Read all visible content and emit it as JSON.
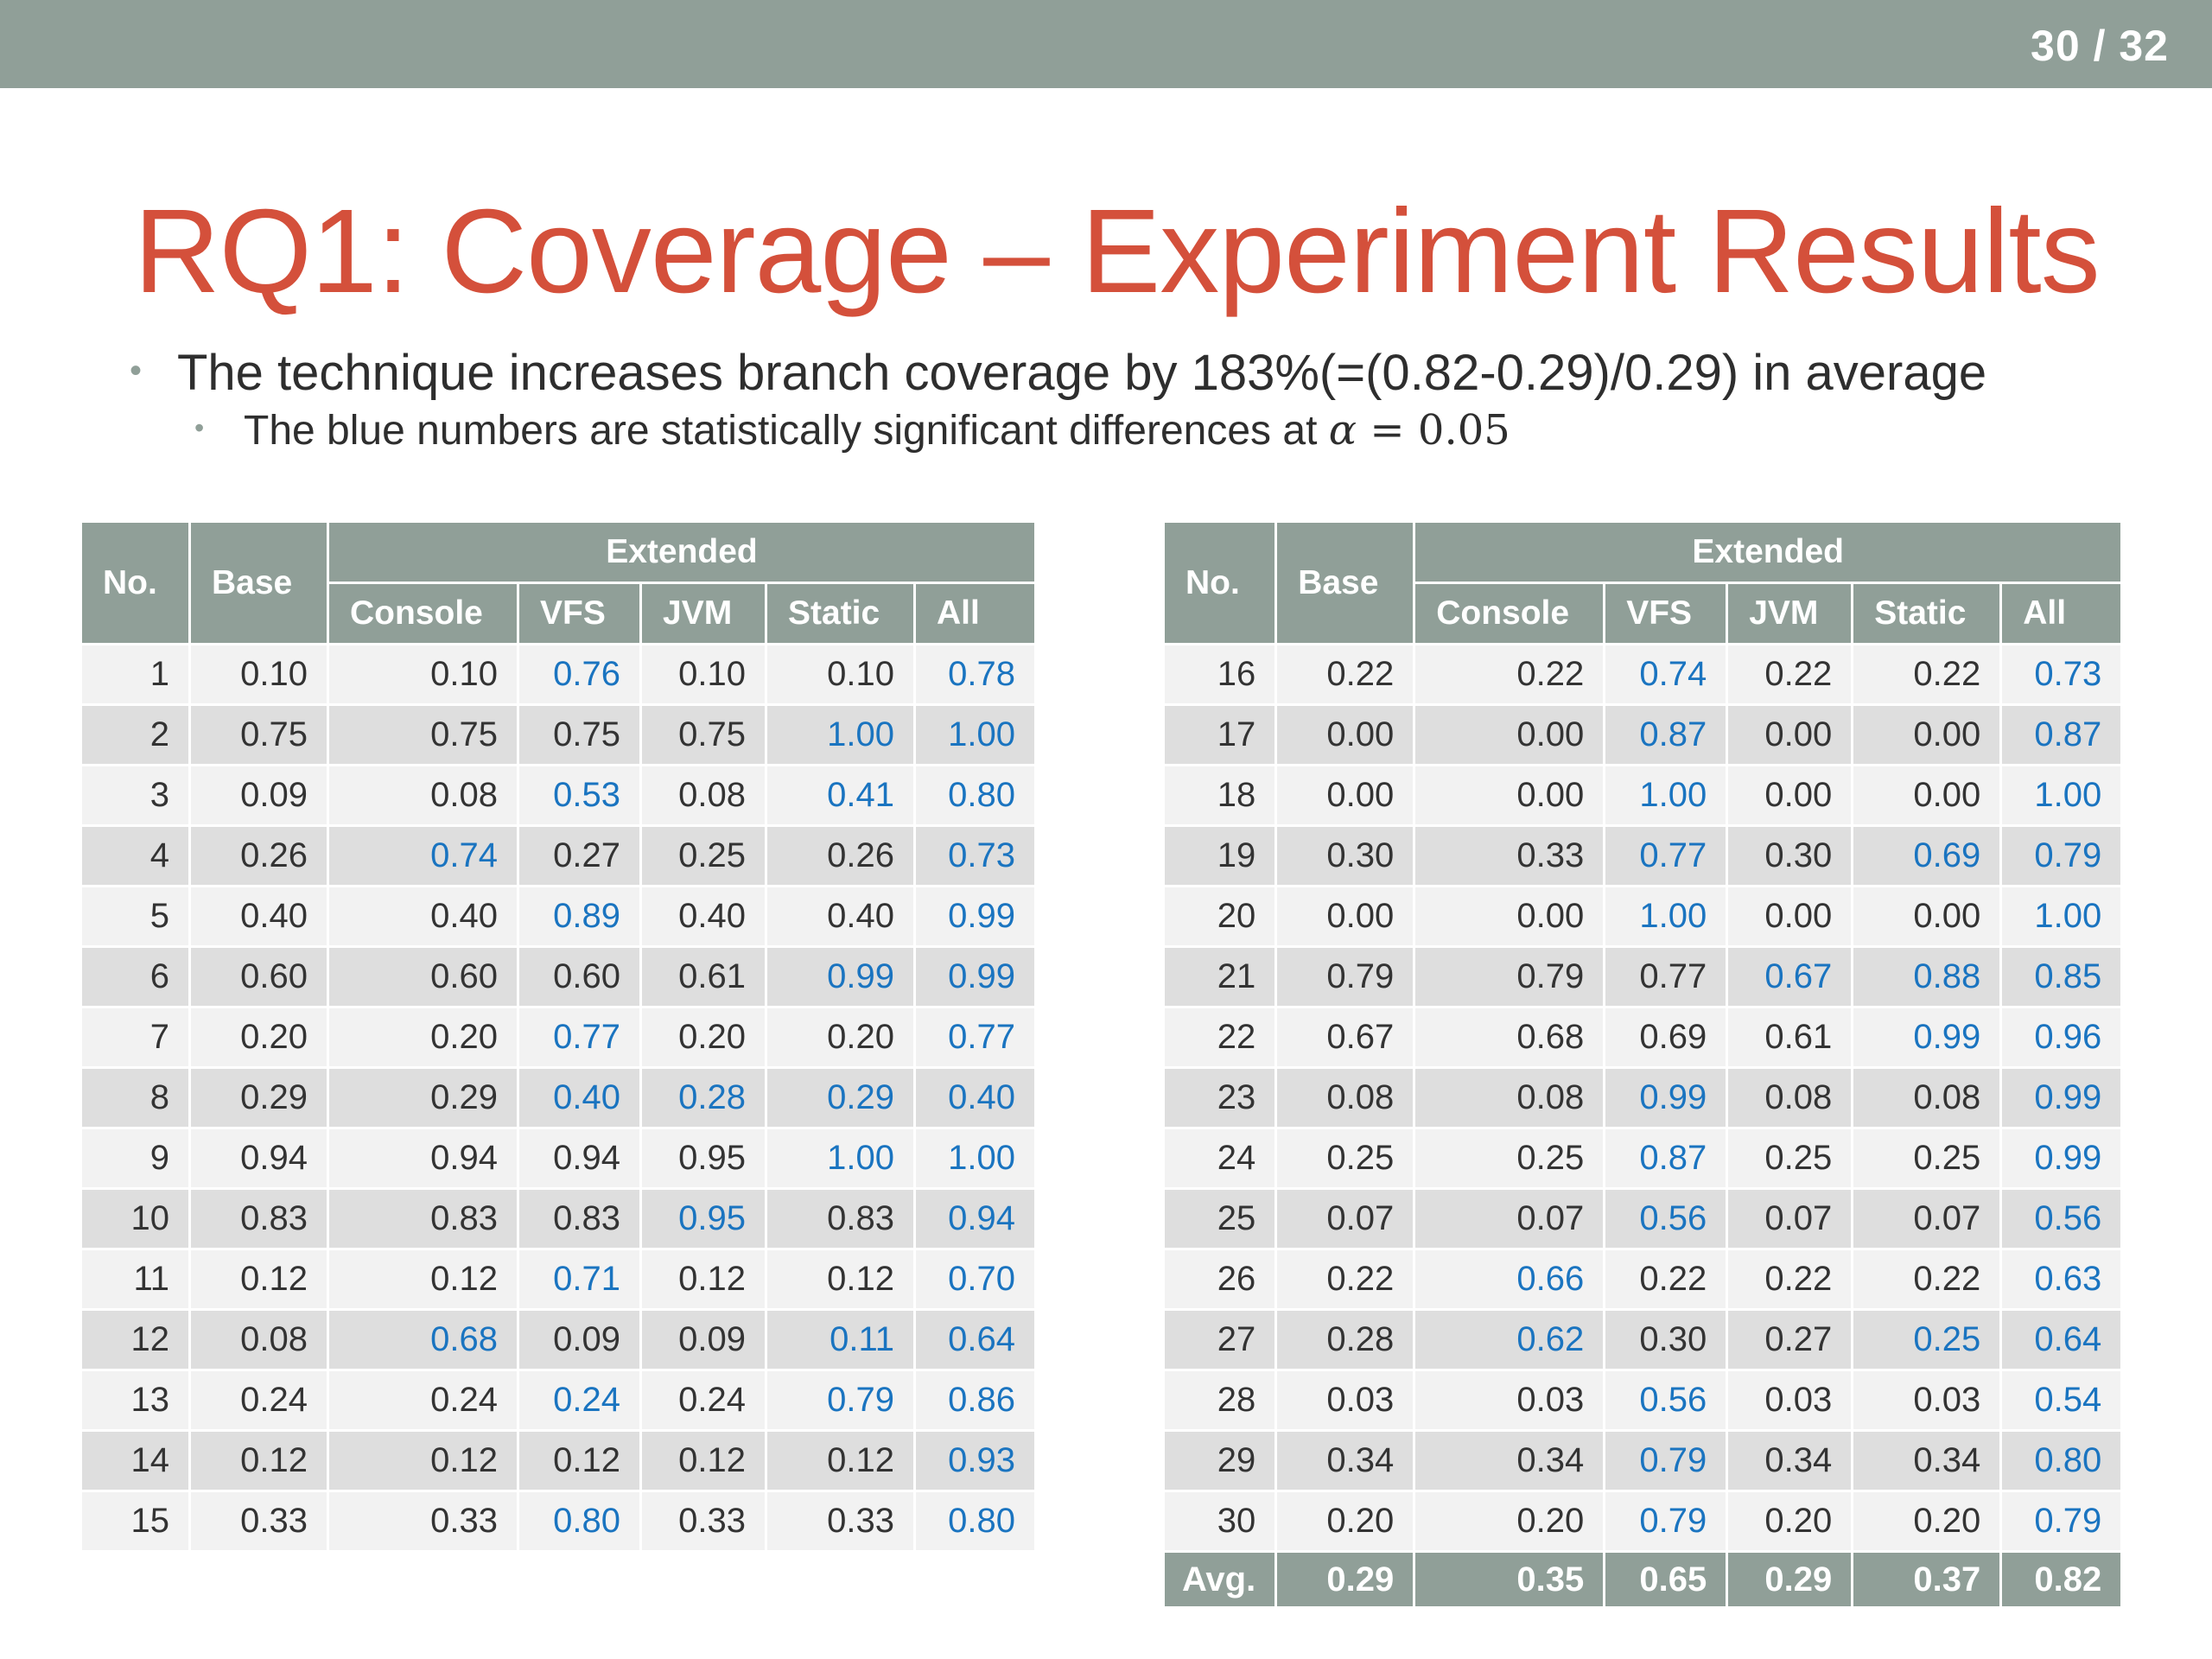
{
  "header": {
    "page_current": "30",
    "page_total": "32",
    "page_sep": "/"
  },
  "slide": {
    "title": "RQ1: Coverage – Experiment Results",
    "bullet_main": "The technique increases branch coverage by 183%(=(0.82-0.29)/0.29) in average",
    "bullet_sub_text": "The blue numbers are statistically significant differences at",
    "bullet_sub_alpha": "α",
    "bullet_sub_eq": " = ",
    "bullet_sub_value": "0.05"
  },
  "table_headers": {
    "no": "No.",
    "base": "Base",
    "extended": "Extended",
    "console": "Console",
    "vfs": "VFS",
    "jvm": "JVM",
    "static": "Static",
    "all": "All"
  },
  "colors": {
    "bar": "#909f98",
    "title": "#d4503b",
    "significant": "#1a74c0"
  },
  "table_left": {
    "rows": [
      {
        "no": "1",
        "base": "0.10",
        "console": "0.10",
        "vfs": "0.76",
        "jvm": "0.10",
        "static": "0.10",
        "all": "0.78",
        "sig": [
          "vfs",
          "all"
        ]
      },
      {
        "no": "2",
        "base": "0.75",
        "console": "0.75",
        "vfs": "0.75",
        "jvm": "0.75",
        "static": "1.00",
        "all": "1.00",
        "sig": [
          "static",
          "all"
        ]
      },
      {
        "no": "3",
        "base": "0.09",
        "console": "0.08",
        "vfs": "0.53",
        "jvm": "0.08",
        "static": "0.41",
        "all": "0.80",
        "sig": [
          "vfs",
          "static",
          "all"
        ]
      },
      {
        "no": "4",
        "base": "0.26",
        "console": "0.74",
        "vfs": "0.27",
        "jvm": "0.25",
        "static": "0.26",
        "all": "0.73",
        "sig": [
          "console",
          "all"
        ]
      },
      {
        "no": "5",
        "base": "0.40",
        "console": "0.40",
        "vfs": "0.89",
        "jvm": "0.40",
        "static": "0.40",
        "all": "0.99",
        "sig": [
          "vfs",
          "all"
        ]
      },
      {
        "no": "6",
        "base": "0.60",
        "console": "0.60",
        "vfs": "0.60",
        "jvm": "0.61",
        "static": "0.99",
        "all": "0.99",
        "sig": [
          "static",
          "all"
        ]
      },
      {
        "no": "7",
        "base": "0.20",
        "console": "0.20",
        "vfs": "0.77",
        "jvm": "0.20",
        "static": "0.20",
        "all": "0.77",
        "sig": [
          "vfs",
          "all"
        ]
      },
      {
        "no": "8",
        "base": "0.29",
        "console": "0.29",
        "vfs": "0.40",
        "jvm": "0.28",
        "static": "0.29",
        "all": "0.40",
        "sig": [
          "vfs",
          "jvm",
          "static",
          "all"
        ]
      },
      {
        "no": "9",
        "base": "0.94",
        "console": "0.94",
        "vfs": "0.94",
        "jvm": "0.95",
        "static": "1.00",
        "all": "1.00",
        "sig": [
          "static",
          "all"
        ]
      },
      {
        "no": "10",
        "base": "0.83",
        "console": "0.83",
        "vfs": "0.83",
        "jvm": "0.95",
        "static": "0.83",
        "all": "0.94",
        "sig": [
          "jvm",
          "all"
        ]
      },
      {
        "no": "11",
        "base": "0.12",
        "console": "0.12",
        "vfs": "0.71",
        "jvm": "0.12",
        "static": "0.12",
        "all": "0.70",
        "sig": [
          "vfs",
          "all"
        ]
      },
      {
        "no": "12",
        "base": "0.08",
        "console": "0.68",
        "vfs": "0.09",
        "jvm": "0.09",
        "static": "0.11",
        "all": "0.64",
        "sig": [
          "console",
          "static",
          "all"
        ]
      },
      {
        "no": "13",
        "base": "0.24",
        "console": "0.24",
        "vfs": "0.24",
        "jvm": "0.24",
        "static": "0.79",
        "all": "0.86",
        "sig": [
          "vfs",
          "static",
          "all"
        ]
      },
      {
        "no": "14",
        "base": "0.12",
        "console": "0.12",
        "vfs": "0.12",
        "jvm": "0.12",
        "static": "0.12",
        "all": "0.93",
        "sig": [
          "all"
        ]
      },
      {
        "no": "15",
        "base": "0.33",
        "console": "0.33",
        "vfs": "0.80",
        "jvm": "0.33",
        "static": "0.33",
        "all": "0.80",
        "sig": [
          "vfs",
          "all"
        ]
      }
    ]
  },
  "table_right": {
    "rows": [
      {
        "no": "16",
        "base": "0.22",
        "console": "0.22",
        "vfs": "0.74",
        "jvm": "0.22",
        "static": "0.22",
        "all": "0.73",
        "sig": [
          "vfs",
          "all"
        ]
      },
      {
        "no": "17",
        "base": "0.00",
        "console": "0.00",
        "vfs": "0.87",
        "jvm": "0.00",
        "static": "0.00",
        "all": "0.87",
        "sig": [
          "vfs",
          "all"
        ]
      },
      {
        "no": "18",
        "base": "0.00",
        "console": "0.00",
        "vfs": "1.00",
        "jvm": "0.00",
        "static": "0.00",
        "all": "1.00",
        "sig": [
          "vfs",
          "all"
        ]
      },
      {
        "no": "19",
        "base": "0.30",
        "console": "0.33",
        "vfs": "0.77",
        "jvm": "0.30",
        "static": "0.69",
        "all": "0.79",
        "sig": [
          "vfs",
          "static",
          "all"
        ]
      },
      {
        "no": "20",
        "base": "0.00",
        "console": "0.00",
        "vfs": "1.00",
        "jvm": "0.00",
        "static": "0.00",
        "all": "1.00",
        "sig": [
          "vfs",
          "all"
        ]
      },
      {
        "no": "21",
        "base": "0.79",
        "console": "0.79",
        "vfs": "0.77",
        "jvm": "0.67",
        "static": "0.88",
        "all": "0.85",
        "sig": [
          "jvm",
          "static",
          "all"
        ]
      },
      {
        "no": "22",
        "base": "0.67",
        "console": "0.68",
        "vfs": "0.69",
        "jvm": "0.61",
        "static": "0.99",
        "all": "0.96",
        "sig": [
          "static",
          "all"
        ]
      },
      {
        "no": "23",
        "base": "0.08",
        "console": "0.08",
        "vfs": "0.99",
        "jvm": "0.08",
        "static": "0.08",
        "all": "0.99",
        "sig": [
          "vfs",
          "all"
        ]
      },
      {
        "no": "24",
        "base": "0.25",
        "console": "0.25",
        "vfs": "0.87",
        "jvm": "0.25",
        "static": "0.25",
        "all": "0.99",
        "sig": [
          "vfs",
          "all"
        ]
      },
      {
        "no": "25",
        "base": "0.07",
        "console": "0.07",
        "vfs": "0.56",
        "jvm": "0.07",
        "static": "0.07",
        "all": "0.56",
        "sig": [
          "vfs",
          "all"
        ]
      },
      {
        "no": "26",
        "base": "0.22",
        "console": "0.66",
        "vfs": "0.22",
        "jvm": "0.22",
        "static": "0.22",
        "all": "0.63",
        "sig": [
          "console",
          "all"
        ]
      },
      {
        "no": "27",
        "base": "0.28",
        "console": "0.62",
        "vfs": "0.30",
        "jvm": "0.27",
        "static": "0.25",
        "all": "0.64",
        "sig": [
          "console",
          "static",
          "all"
        ]
      },
      {
        "no": "28",
        "base": "0.03",
        "console": "0.03",
        "vfs": "0.56",
        "jvm": "0.03",
        "static": "0.03",
        "all": "0.54",
        "sig": [
          "vfs",
          "all"
        ]
      },
      {
        "no": "29",
        "base": "0.34",
        "console": "0.34",
        "vfs": "0.79",
        "jvm": "0.34",
        "static": "0.34",
        "all": "0.80",
        "sig": [
          "vfs",
          "all"
        ]
      },
      {
        "no": "30",
        "base": "0.20",
        "console": "0.20",
        "vfs": "0.79",
        "jvm": "0.20",
        "static": "0.20",
        "all": "0.79",
        "sig": [
          "vfs",
          "all"
        ]
      }
    ],
    "avg": {
      "label": "Avg.",
      "base": "0.29",
      "console": "0.35",
      "vfs": "0.65",
      "jvm": "0.29",
      "static": "0.37",
      "all": "0.82"
    }
  }
}
